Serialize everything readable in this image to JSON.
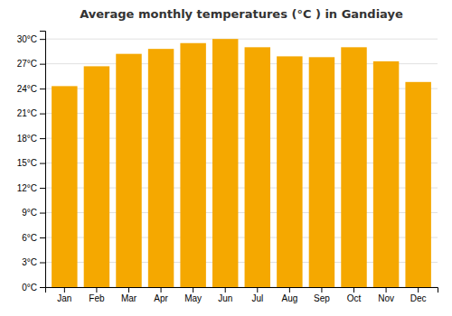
{
  "chart_data": {
    "type": "bar",
    "title": "Average monthly temperatures (°C ) in Gandiaye",
    "categories": [
      "Jan",
      "Feb",
      "Mar",
      "Apr",
      "May",
      "Jun",
      "Jul",
      "Aug",
      "Sep",
      "Oct",
      "Nov",
      "Dec"
    ],
    "values": [
      24.3,
      26.7,
      28.2,
      28.8,
      29.5,
      30.0,
      29.0,
      27.9,
      27.8,
      29.0,
      27.3,
      24.8
    ],
    "color": "#F5A800",
    "ylim": [
      0,
      31
    ],
    "yticks": [
      {
        "value": 0,
        "label": "0°C"
      },
      {
        "value": 3,
        "label": "3°C"
      },
      {
        "value": 6,
        "label": "6°C"
      },
      {
        "value": 9,
        "label": "9°C"
      },
      {
        "value": 12,
        "label": "12°C"
      },
      {
        "value": 15,
        "label": "15°C"
      },
      {
        "value": 18,
        "label": "18°C"
      },
      {
        "value": 21,
        "label": "21°C"
      },
      {
        "value": 24,
        "label": "24°C"
      },
      {
        "value": 27,
        "label": "27°C"
      },
      {
        "value": 30,
        "label": "30°C"
      }
    ],
    "grid": true
  }
}
